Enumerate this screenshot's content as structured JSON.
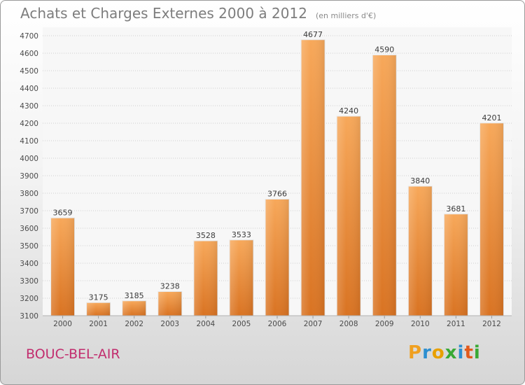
{
  "header": {
    "title": "Achats et Charges Externes 2000 à 2012",
    "subtitle": "(en milliers d'€)"
  },
  "footer": {
    "city": "BOUC-BEL-AIR",
    "logo_text": "Proxiti"
  },
  "colors": {
    "bar_top": "#f7a85a",
    "bar_bottom": "#d97322",
    "city": "#c22d6e"
  },
  "chart_data": {
    "type": "bar",
    "title": "Achats et Charges Externes 2000 à 2012",
    "subtitle": "(en milliers d'€)",
    "categories": [
      "2000",
      "2001",
      "2002",
      "2003",
      "2004",
      "2005",
      "2006",
      "2007",
      "2008",
      "2009",
      "2010",
      "2011",
      "2012"
    ],
    "values": [
      3659,
      3175,
      3185,
      3238,
      3528,
      3533,
      3766,
      4677,
      4240,
      4590,
      3840,
      3681,
      4201
    ],
    "ylim": [
      3100,
      4700
    ],
    "ytick_step": 100,
    "grid": true,
    "data_labels": true
  }
}
